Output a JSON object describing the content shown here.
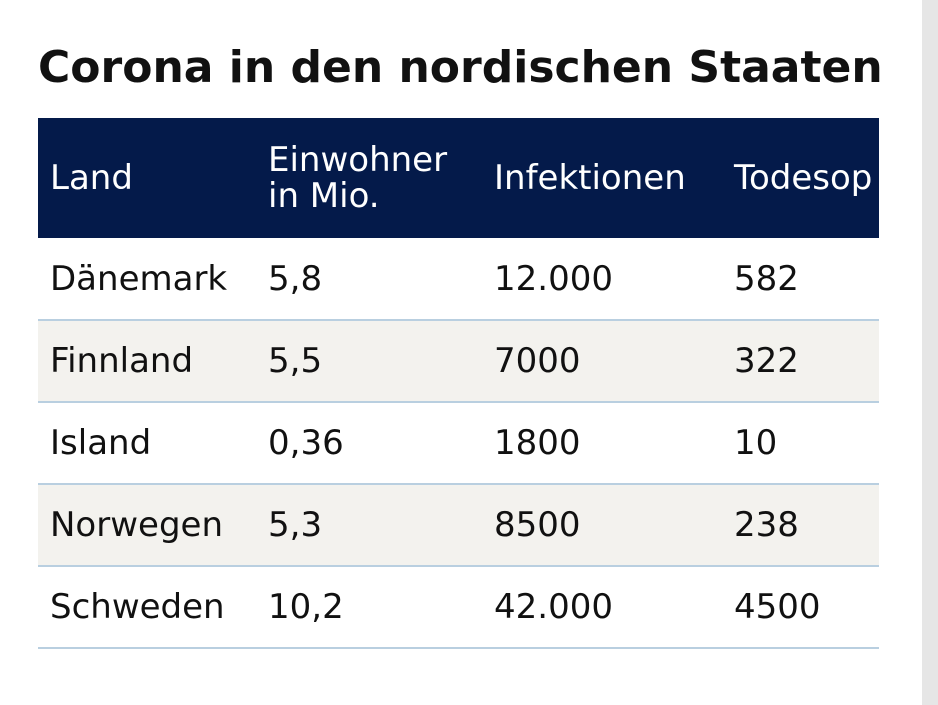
{
  "chart_data": {
    "type": "table",
    "title": "Corona in den nordischen Staaten",
    "columns": [
      "Land",
      "Einwohner in Mio.",
      "Infektionen",
      "Todesop"
    ],
    "rows": [
      [
        "Dänemark",
        "5,8",
        "12.000",
        "582"
      ],
      [
        "Finnland",
        "5,5",
        "7000",
        "322"
      ],
      [
        "Island",
        "0,36",
        "1800",
        "10"
      ],
      [
        "Norwegen",
        "5,3",
        "8500",
        "238"
      ],
      [
        "Schweden",
        "10,2",
        "42.000",
        "4500"
      ]
    ],
    "colors": {
      "header_background": "#041a4a",
      "header_text": "#ffffff",
      "alt_row_background": "#f3f2ee",
      "row_divider": "#b9cfe0"
    }
  }
}
